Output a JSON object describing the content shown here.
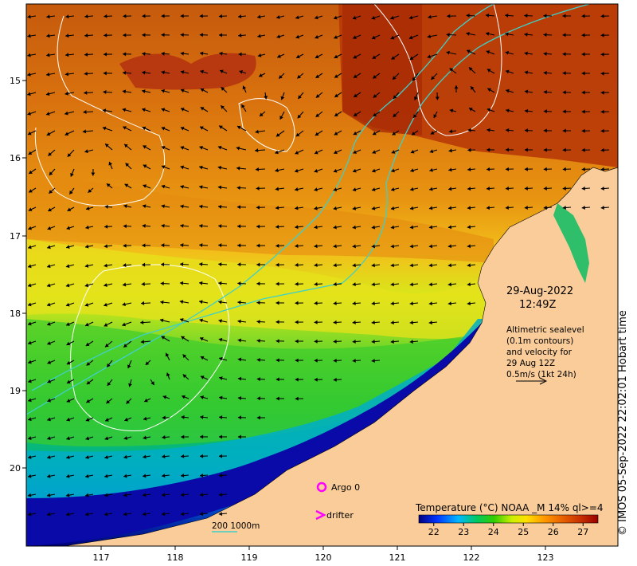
{
  "map": {
    "lat_ticks": [
      "15",
      "16",
      "17",
      "18",
      "19",
      "20"
    ],
    "lon_ticks": [
      "117",
      "118",
      "119",
      "120",
      "121",
      "122",
      "123"
    ],
    "date": "29-Aug-2022",
    "time": "12:49Z",
    "altimetry_note": [
      "Altimetric sealevel",
      "(0.1m contours)",
      "and velocity for",
      "29 Aug 12Z",
      "0.5m/s (1kt 24h)"
    ],
    "legend_argo": "Argo 0",
    "legend_drifter": "drifter",
    "bathy_label": "200  1000m",
    "colorbar_title": "Temperature (°C) NOAA _M 14% ql>=4",
    "colorbar_ticks": [
      "22",
      "23",
      "24",
      "25",
      "26",
      "27"
    ],
    "colorbar_range": [
      21.5,
      27.5
    ],
    "credit": "© IMOS 05-Sep-2022 22:02:01 Hobart time",
    "colors": {
      "land": "#f9cc9a",
      "coast_line": "#000000",
      "bathy": "#40d0c8",
      "sealevel_contour": "#ffffff",
      "argo": "#ff00ff",
      "drifter": "#ff00ff"
    }
  }
}
